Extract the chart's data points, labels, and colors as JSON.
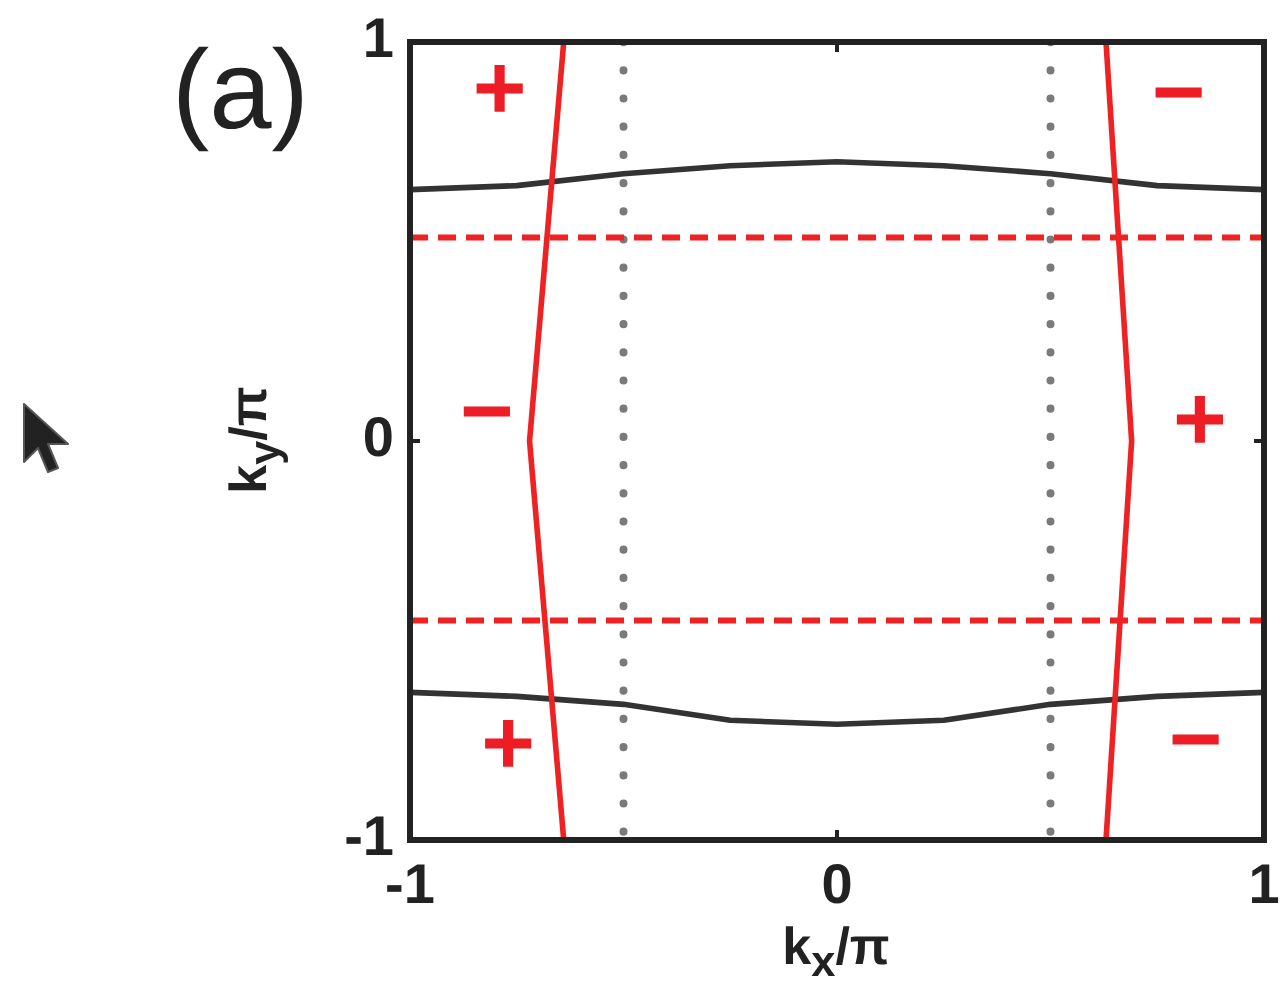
{
  "chart_data": {
    "type": "line",
    "title": "(a)",
    "xlabel": "k$_{x}$/π",
    "ylabel": "k$_{y}$/π",
    "xlim": [
      -1,
      1
    ],
    "ylim": [
      -1,
      1
    ],
    "xticks": [
      -1,
      0,
      1
    ],
    "yticks": [
      -1,
      0,
      1
    ],
    "series": [
      {
        "color": "#ee2222",
        "x": [
          -0.64,
          -0.68,
          -0.72,
          -0.68,
          -0.64
        ],
        "values": [
          1,
          0.5,
          0,
          -0.5,
          -1
        ]
      },
      {
        "color": "#ee2222",
        "x": [
          0.63,
          0.66,
          0.69,
          0.66,
          0.63
        ],
        "values": [
          1,
          0.5,
          0,
          -0.5,
          -1
        ]
      },
      {
        "color": "#333333",
        "x": [
          -1,
          -0.75,
          -0.5,
          -0.25,
          0,
          0.25,
          0.5,
          0.75,
          1
        ],
        "values": [
          0.63,
          0.64,
          0.67,
          0.69,
          0.7,
          0.69,
          0.67,
          0.64,
          0.63
        ]
      },
      {
        "color": "#333333",
        "x": [
          -1,
          -0.75,
          -0.5,
          -0.25,
          0,
          0.25,
          0.5,
          0.75,
          1
        ],
        "values": [
          -0.63,
          -0.64,
          -0.66,
          -0.7,
          -0.71,
          -0.7,
          -0.66,
          -0.64,
          -0.63
        ]
      }
    ],
    "ref_lines": [
      {
        "axis": "x",
        "value": -0.5,
        "color": "#7a7a7a",
        "line_style": "dotted"
      },
      {
        "axis": "x",
        "value": 0.5,
        "color": "#7a7a7a",
        "line_style": "dotted"
      },
      {
        "axis": "y",
        "value": 0.51,
        "color": "#ee2222",
        "line_style": "dashed"
      },
      {
        "axis": "y",
        "value": -0.45,
        "color": "#ee2222",
        "line_style": "dashed"
      }
    ],
    "annotations": [
      "+",
      "−",
      "−",
      "+",
      "+",
      "−"
    ],
    "grid": false,
    "legend": false,
    "marker": "none",
    "line_style": "solid"
  }
}
